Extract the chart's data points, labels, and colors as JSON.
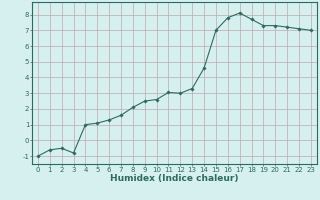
{
  "x": [
    0,
    1,
    2,
    3,
    4,
    5,
    6,
    7,
    8,
    9,
    10,
    11,
    12,
    13,
    14,
    15,
    16,
    17,
    18,
    19,
    20,
    21,
    22,
    23
  ],
  "y": [
    -1.0,
    -0.6,
    -0.5,
    -0.8,
    1.0,
    1.1,
    1.3,
    1.6,
    2.1,
    2.5,
    2.6,
    3.05,
    3.0,
    3.3,
    4.6,
    7.0,
    7.8,
    8.1,
    7.7,
    7.3,
    7.3,
    7.2,
    7.1,
    7.0
  ],
  "line_color": "#2E6B5E",
  "marker": "D",
  "marker_size": 1.8,
  "bg_color": "#D6EFEF",
  "grid_color": "#C0AAAA",
  "axis_color": "#2E6B5E",
  "xlabel": "Humidex (Indice chaleur)",
  "xlabel_fontsize": 6.5,
  "xlim": [
    -0.5,
    23.5
  ],
  "ylim": [
    -1.5,
    8.8
  ],
  "yticks": [
    -1,
    0,
    1,
    2,
    3,
    4,
    5,
    6,
    7,
    8
  ],
  "xticks": [
    0,
    1,
    2,
    3,
    4,
    5,
    6,
    7,
    8,
    9,
    10,
    11,
    12,
    13,
    14,
    15,
    16,
    17,
    18,
    19,
    20,
    21,
    22,
    23
  ],
  "tick_fontsize": 5.0,
  "linewidth": 0.8
}
